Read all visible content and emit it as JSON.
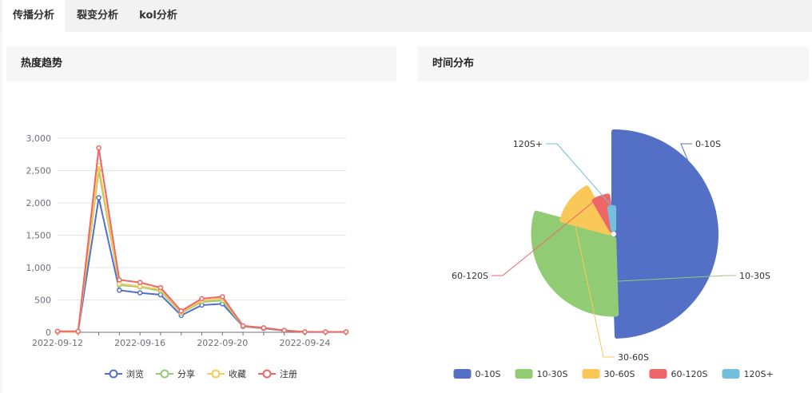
{
  "tabs": [
    {
      "label": "传播分析",
      "active": true
    },
    {
      "label": "裂变分析",
      "active": false
    },
    {
      "label": "kol分析",
      "active": false
    }
  ],
  "panels": {
    "trend_title": "热度趋势",
    "time_title": "时间分布"
  },
  "chart_data": [
    {
      "type": "line",
      "title": "",
      "x": [
        "2022-09-12",
        "2022-09-13",
        "2022-09-14",
        "2022-09-15",
        "2022-09-16",
        "2022-09-17",
        "2022-09-18",
        "2022-09-19",
        "2022-09-20",
        "2022-09-21",
        "2022-09-22",
        "2022-09-23",
        "2022-09-24",
        "2022-09-25",
        "2022-09-26"
      ],
      "x_tick_labels": [
        "2022-09-12",
        "2022-09-16",
        "2022-09-20",
        "2022-09-24"
      ],
      "y_ticks": [
        0,
        500,
        1000,
        1500,
        2000,
        2500,
        3000
      ],
      "y_tick_labels": [
        "0",
        "500",
        "1,000",
        "1,500",
        "2,000",
        "2,500",
        "3,000"
      ],
      "ylim": [
        0,
        3000
      ],
      "grid": true,
      "legend": "bottom",
      "series": [
        {
          "name": "浏览",
          "color": "#5470c6",
          "values": [
            10,
            10,
            2080,
            650,
            610,
            580,
            260,
            420,
            440,
            90,
            60,
            25,
            5,
            5,
            5
          ]
        },
        {
          "name": "分享",
          "color": "#91cc75",
          "values": [
            10,
            10,
            2500,
            730,
            700,
            640,
            300,
            470,
            490,
            95,
            65,
            28,
            6,
            6,
            6
          ]
        },
        {
          "name": "收藏",
          "color": "#fac858",
          "values": [
            10,
            10,
            2580,
            750,
            710,
            660,
            310,
            490,
            520,
            98,
            68,
            29,
            6,
            6,
            6
          ]
        },
        {
          "name": "注册",
          "color": "#ee6666",
          "values": [
            15,
            15,
            2850,
            810,
            770,
            690,
            330,
            520,
            550,
            100,
            70,
            30,
            6,
            6,
            6
          ]
        }
      ]
    },
    {
      "type": "pie",
      "subtype": "nightingale-rose",
      "title": "",
      "legend": "bottom",
      "slices": [
        {
          "label": "0-10S",
          "color": "#5470c6",
          "value": 100
        },
        {
          "label": "10-30S",
          "color": "#91cc75",
          "value": 60
        },
        {
          "label": "30-60S",
          "color": "#fac858",
          "value": 25
        },
        {
          "label": "60-120S",
          "color": "#ee6666",
          "value": 12
        },
        {
          "label": "120S+",
          "color": "#73c0de",
          "value": 5
        }
      ]
    }
  ]
}
